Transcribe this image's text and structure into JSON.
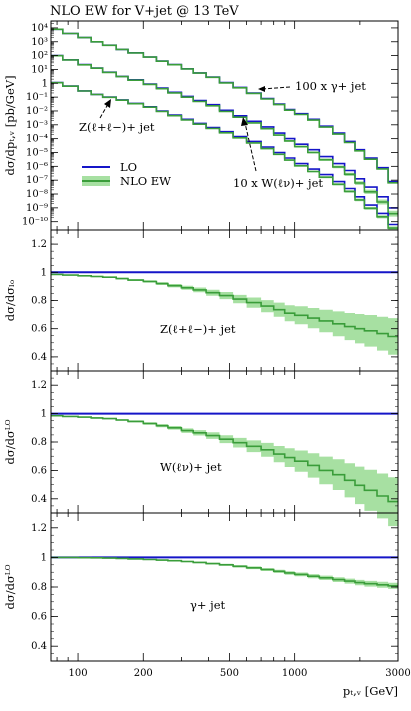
{
  "title": "NLO EW for V+jet @ 13 TeV",
  "colors": {
    "lo": "#1515c8",
    "nlo": "#3a9d3a",
    "band": "#a7e0a2"
  },
  "chart_data": {
    "type": "line",
    "x_scale": "log",
    "xlim": [
      75,
      3000
    ],
    "x_ticks": [
      100,
      200,
      500,
      1000,
      3000
    ],
    "x_tick_labels": [
      "100",
      "200",
      "500",
      "1000",
      "3000"
    ],
    "xlabel": "p_{T,V} [GeV]",
    "bin_edges": [
      75,
      85,
      100,
      115,
      130,
      150,
      170,
      200,
      230,
      260,
      300,
      340,
      390,
      450,
      520,
      600,
      700,
      800,
      900,
      1000,
      1150,
      1300,
      1500,
      1700,
      1900,
      2100,
      2400,
      2700,
      3000
    ],
    "main": {
      "ylabel": "dσ/dp_{T,V} [pb/GeV]",
      "ylim_log10": [
        -10.6,
        4.5
      ],
      "y_ticks_log10": [
        4,
        3,
        2,
        1,
        0,
        -1,
        -2,
        -3,
        -4,
        -5,
        -6,
        -7,
        -8,
        -9,
        -10
      ],
      "y_tick_labels": [
        "10^4",
        "10^3",
        "10^2",
        "10^1",
        "1",
        "10^-1",
        "10^-2",
        "10^-3",
        "10^-4",
        "10^-5",
        "10^-6",
        "10^-7",
        "10^-8",
        "10^-9",
        "10^-10"
      ],
      "legend": {
        "position": "left",
        "entries": [
          {
            "label": "LO",
            "color": "#1515c8"
          },
          {
            "label": "NLO EW",
            "color": "#3a9d3a"
          }
        ]
      },
      "series": [
        {
          "name": "100 x γ+ jet",
          "log10_lo": [
            3.9,
            3.6,
            3.3,
            3.0,
            2.75,
            2.45,
            2.2,
            1.9,
            1.6,
            1.35,
            1.05,
            0.75,
            0.45,
            0.05,
            -0.3,
            -0.7,
            -1.1,
            -1.5,
            -1.9,
            -2.2,
            -2.6,
            -3.1,
            -3.6,
            -4.2,
            -4.8,
            -5.4,
            -6.1,
            -7.1
          ]
        },
        {
          "name": "10 x W(ℓν)+ jet",
          "log10_lo": [
            2.0,
            1.7,
            1.35,
            1.1,
            0.8,
            0.5,
            0.25,
            -0.05,
            -0.35,
            -0.65,
            -0.95,
            -1.25,
            -1.55,
            -1.95,
            -2.35,
            -2.75,
            -3.15,
            -3.6,
            -4.0,
            -4.4,
            -4.8,
            -5.3,
            -5.8,
            -6.3,
            -6.9,
            -7.5,
            -8.2,
            -9.0
          ]
        },
        {
          "name": "Z(ℓ+ℓ−)+ jet",
          "log10_lo": [
            0.05,
            -0.2,
            -0.55,
            -0.8,
            -1.0,
            -1.2,
            -1.45,
            -1.7,
            -2.0,
            -2.3,
            -2.6,
            -2.9,
            -3.2,
            -3.5,
            -3.85,
            -4.2,
            -4.6,
            -5.0,
            -5.4,
            -5.8,
            -6.2,
            -6.6,
            -7.1,
            -7.6,
            -8.2,
            -8.8,
            -9.4,
            -10.2
          ]
        }
      ],
      "annotations": [
        "100 x γ+ jet",
        "Z(ℓ+ℓ−)+ jet",
        "10 x W(ℓν)+ jet"
      ]
    },
    "ratio_panels": [
      {
        "ylabel": "dσ/dσ_LO",
        "label": "Z(ℓ+ℓ−)+ jet",
        "ylim": [
          0.3,
          1.3
        ],
        "y_ticks": [
          0.4,
          0.6,
          0.8,
          1,
          1.2
        ],
        "y_tick_labels": [
          "0.4",
          "0.6",
          "0.8",
          "1",
          "1.2"
        ],
        "nlo_ratio": [
          0.985,
          0.98,
          0.975,
          0.97,
          0.965,
          0.955,
          0.945,
          0.935,
          0.92,
          0.905,
          0.89,
          0.875,
          0.855,
          0.835,
          0.81,
          0.785,
          0.76,
          0.735,
          0.71,
          0.695,
          0.675,
          0.655,
          0.635,
          0.615,
          0.6,
          0.585,
          0.565,
          0.545
        ],
        "band_halfwidth": [
          0.003,
          0.003,
          0.004,
          0.005,
          0.005,
          0.006,
          0.007,
          0.008,
          0.01,
          0.012,
          0.014,
          0.017,
          0.021,
          0.025,
          0.03,
          0.036,
          0.043,
          0.05,
          0.057,
          0.064,
          0.072,
          0.08,
          0.088,
          0.096,
          0.104,
          0.112,
          0.12,
          0.13
        ]
      },
      {
        "ylabel": "dσ/dσ^LO",
        "label": "W(ℓν)+ jet",
        "ylim": [
          0.3,
          1.3
        ],
        "y_ticks": [
          0.4,
          0.6,
          0.8,
          1,
          1.2
        ],
        "y_tick_labels": [
          "0.4",
          "0.6",
          "0.8",
          "1",
          "1.2"
        ],
        "nlo_ratio": [
          0.985,
          0.98,
          0.975,
          0.97,
          0.965,
          0.955,
          0.945,
          0.93,
          0.915,
          0.9,
          0.88,
          0.865,
          0.845,
          0.82,
          0.795,
          0.77,
          0.745,
          0.715,
          0.69,
          0.665,
          0.635,
          0.6,
          0.57,
          0.53,
          0.495,
          0.46,
          0.42,
          0.38
        ],
        "band_halfwidth": [
          0.003,
          0.003,
          0.004,
          0.005,
          0.005,
          0.006,
          0.007,
          0.009,
          0.011,
          0.013,
          0.016,
          0.019,
          0.023,
          0.028,
          0.034,
          0.041,
          0.049,
          0.057,
          0.066,
          0.075,
          0.086,
          0.097,
          0.108,
          0.12,
          0.132,
          0.145,
          0.158,
          0.172
        ]
      },
      {
        "ylabel": "dσ/dσ^LO",
        "label": "γ+ jet",
        "ylim": [
          0.3,
          1.3
        ],
        "y_ticks": [
          0.4,
          0.6,
          0.8,
          1,
          1.2
        ],
        "y_tick_labels": [
          "0.4",
          "0.6",
          "0.8",
          "1",
          "1.2"
        ],
        "nlo_ratio": [
          1.0,
          1.0,
          0.998,
          0.997,
          0.995,
          0.993,
          0.99,
          0.986,
          0.982,
          0.978,
          0.972,
          0.966,
          0.958,
          0.95,
          0.94,
          0.93,
          0.918,
          0.906,
          0.895,
          0.885,
          0.873,
          0.862,
          0.85,
          0.84,
          0.83,
          0.822,
          0.815,
          0.808
        ],
        "band_halfwidth": [
          0.001,
          0.001,
          0.001,
          0.002,
          0.002,
          0.002,
          0.003,
          0.003,
          0.004,
          0.004,
          0.005,
          0.005,
          0.006,
          0.007,
          0.008,
          0.009,
          0.01,
          0.011,
          0.012,
          0.013,
          0.014,
          0.015,
          0.016,
          0.017,
          0.018,
          0.019,
          0.02,
          0.021
        ]
      }
    ]
  }
}
